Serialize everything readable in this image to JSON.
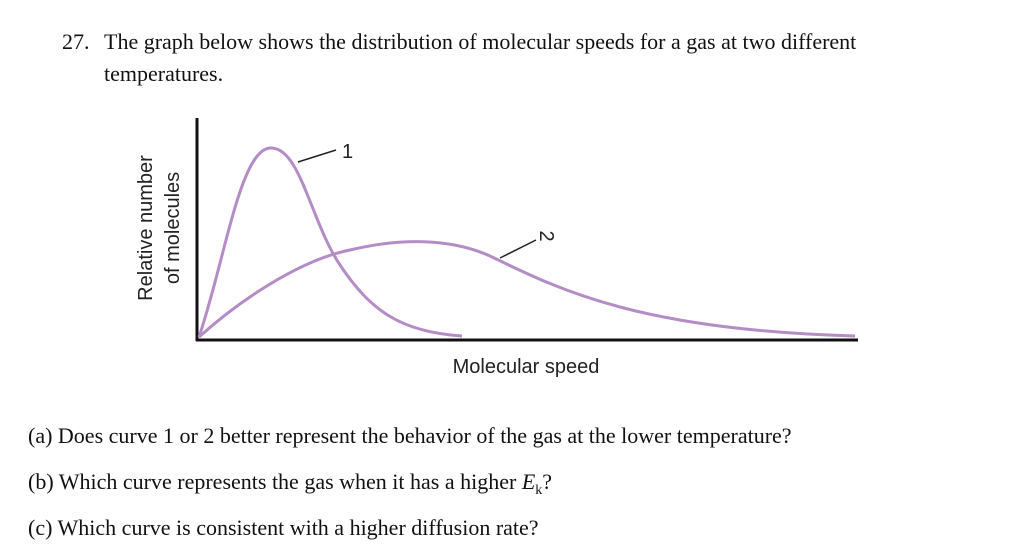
{
  "question": {
    "number": "27.",
    "line1": "The graph below shows the distribution of molecular speeds for a gas at two different",
    "line2": "temperatures."
  },
  "figure": {
    "y_label": [
      "Relative number",
      "of molecules"
    ],
    "x_label": "Molecular speed",
    "curve_labels": [
      "1",
      "2"
    ]
  },
  "parts": [
    {
      "label": "(a)",
      "text": "Does curve 1 or 2 better represent the behavior of the gas at the lower temperature?"
    },
    {
      "label": "(b)",
      "text": "Which curve represents the gas when it has a higher",
      "symbol": "E",
      "subscript": "k",
      "end": "?"
    },
    {
      "label": "(c)",
      "text": "Which curve is consistent with a higher diffusion rate?"
    }
  ]
}
